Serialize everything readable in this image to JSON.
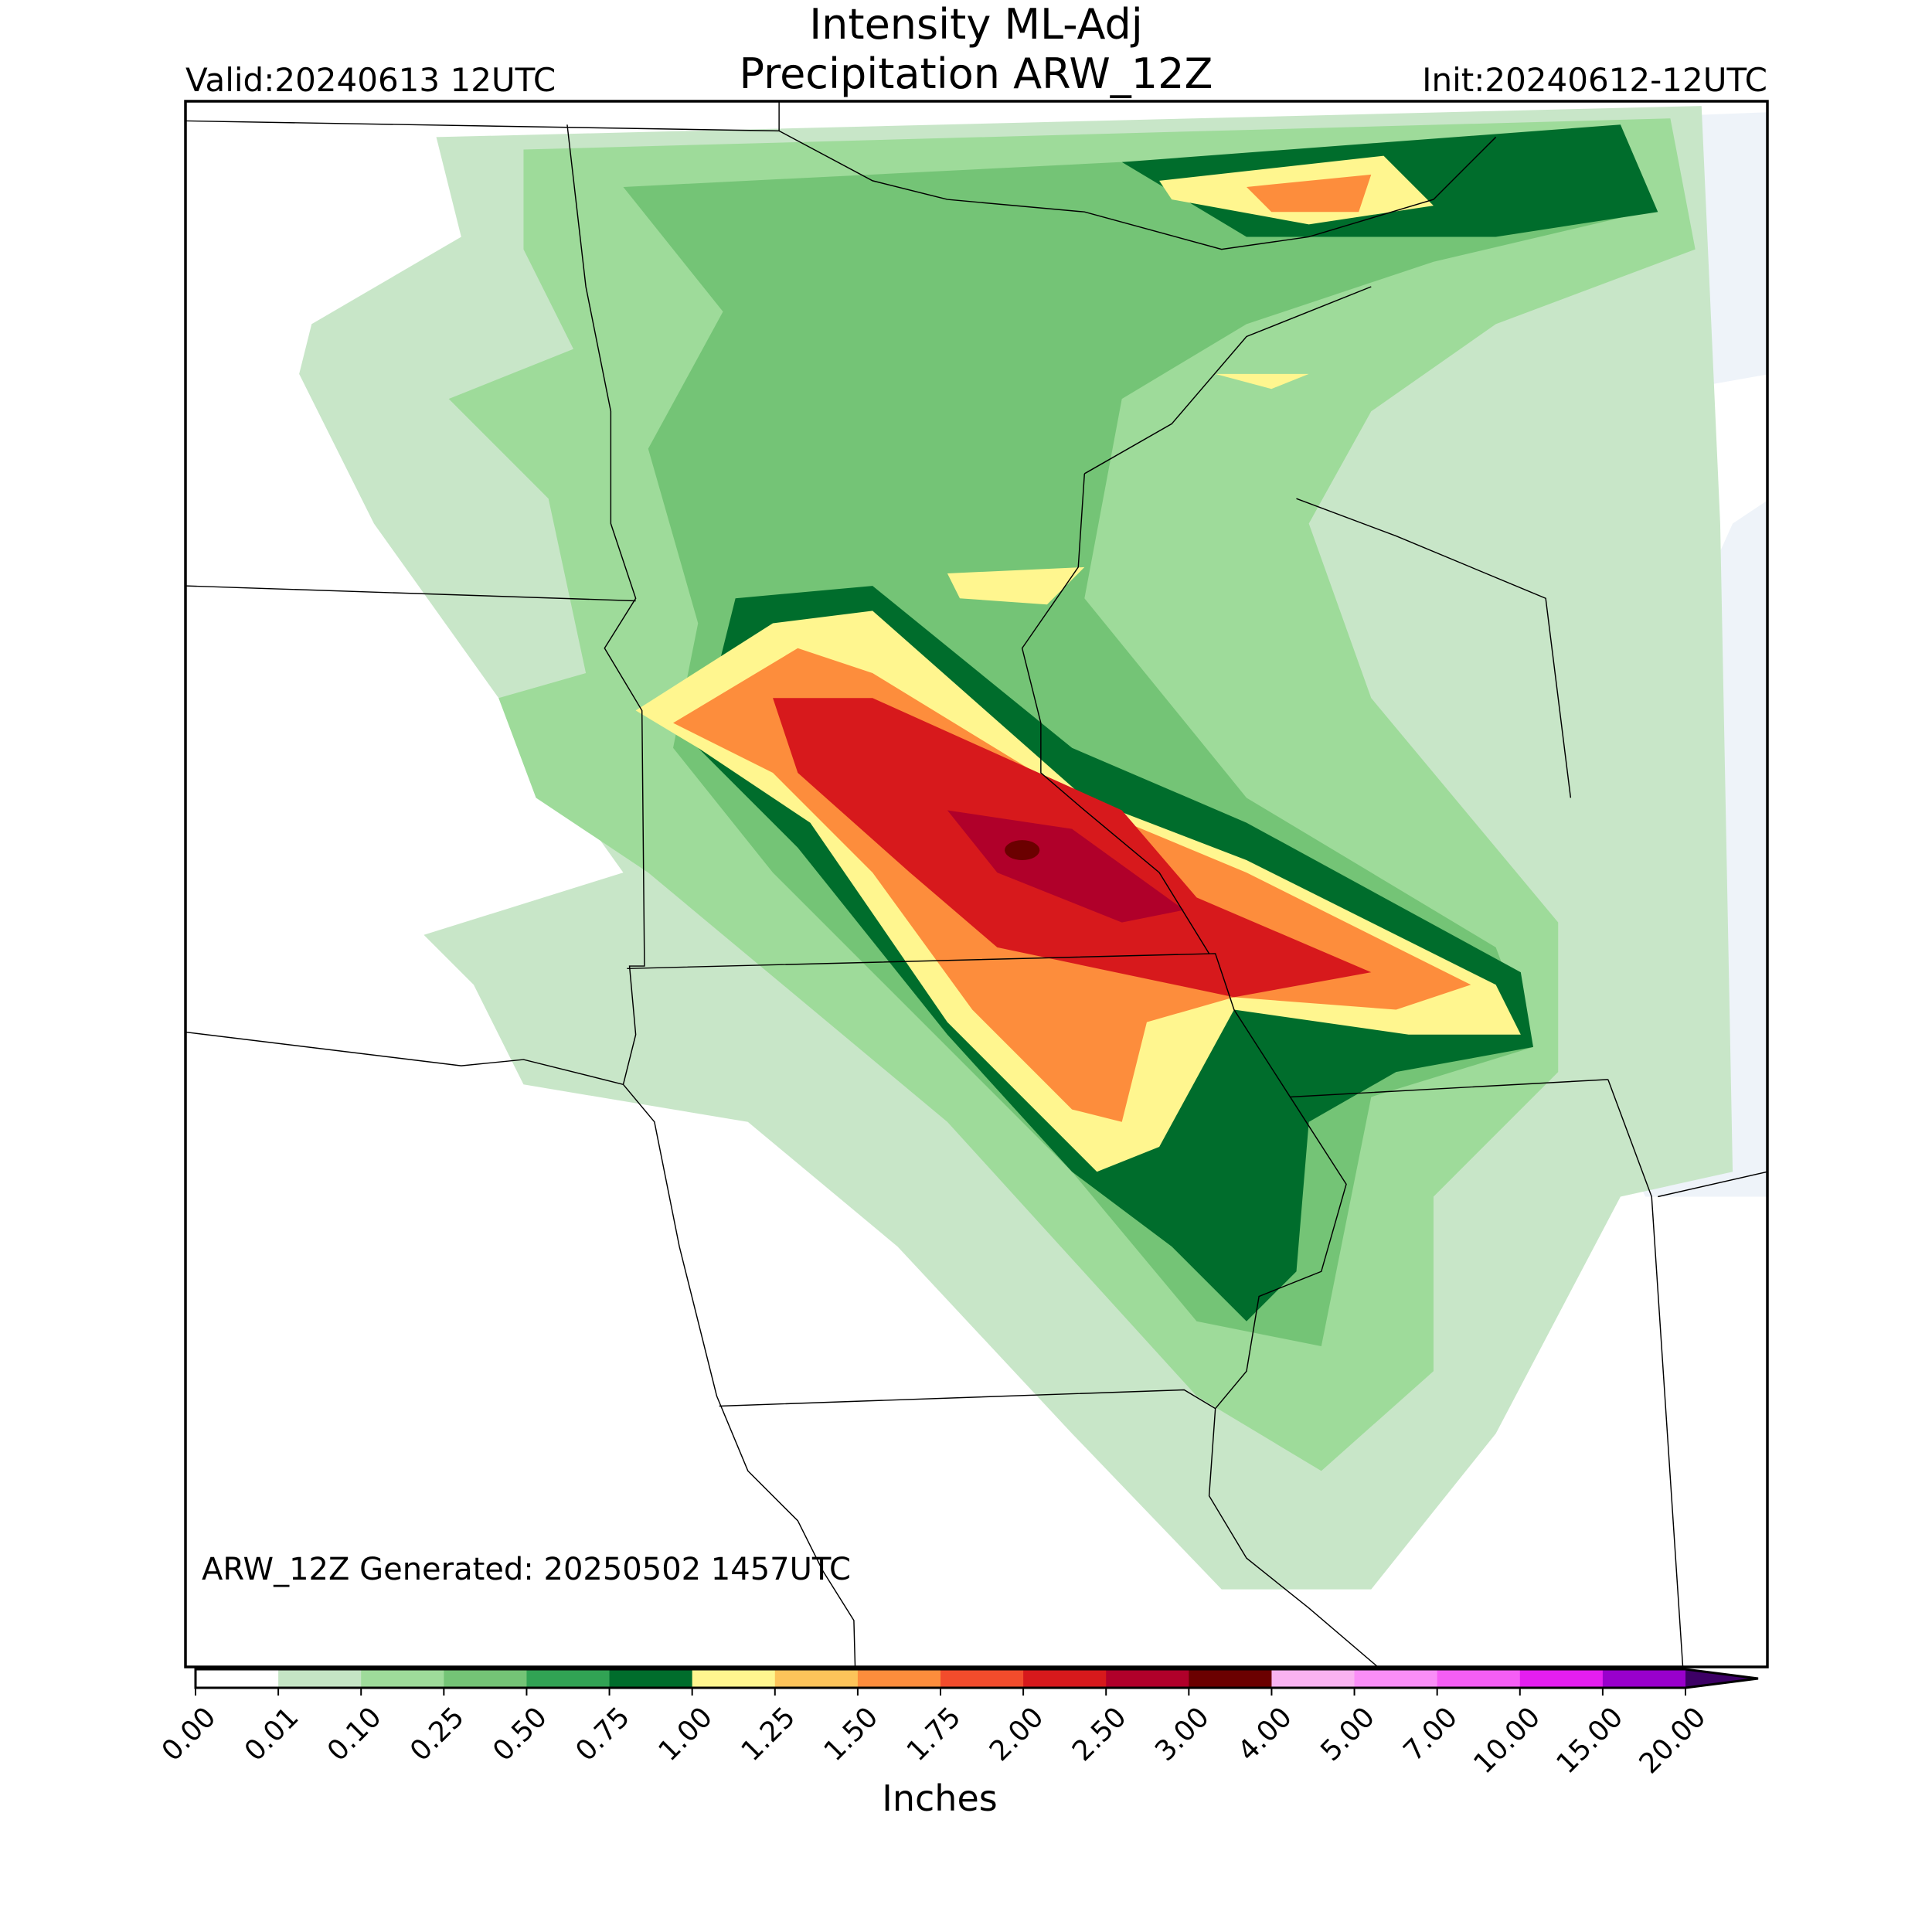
{
  "header": {
    "title": "Intensity ML-Adj",
    "subtitle": "Precipitation ARW_12Z",
    "valid": "Valid:20240613 12UTC",
    "init": "Init:20240612-12UTC"
  },
  "map": {
    "footnote": "ARW_12Z Generated: 20250502 1457UTC"
  },
  "colorbar": {
    "label": "Inches",
    "ticks": [
      "0.00",
      "0.01",
      "0.10",
      "0.25",
      "0.50",
      "0.75",
      "1.00",
      "1.25",
      "1.50",
      "1.75",
      "2.00",
      "2.50",
      "3.00",
      "4.00",
      "5.00",
      "7.00",
      "10.00",
      "15.00",
      "20.00"
    ],
    "colors": [
      "#ffffff",
      "#c5e5c5",
      "#9edb9a",
      "#74c476",
      "#31a354",
      "#006d2c",
      "#fff68f",
      "#fdc45a",
      "#fd8d3c",
      "#f24c2c",
      "#d7191c",
      "#b0002a",
      "#6b0000",
      "#f9b3f1",
      "#f98ef7",
      "#f55ef5",
      "#e41ef0",
      "#9900cc"
    ],
    "extend_color": "#3d0066"
  }
}
